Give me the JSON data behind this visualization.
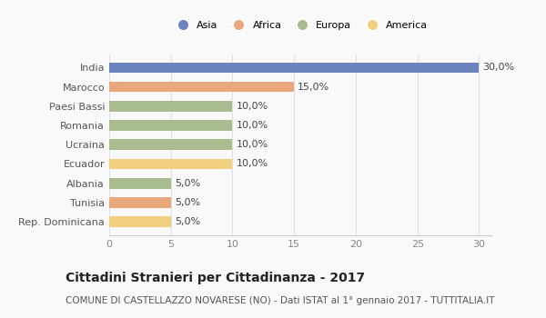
{
  "countries": [
    "India",
    "Marocco",
    "Paesi Bassi",
    "Romania",
    "Ucraina",
    "Ecuador",
    "Albania",
    "Tunisia",
    "Rep. Dominicana"
  ],
  "values": [
    30.0,
    15.0,
    10.0,
    10.0,
    10.0,
    10.0,
    5.0,
    5.0,
    5.0
  ],
  "continents": [
    "Asia",
    "Africa",
    "Europa",
    "Europa",
    "Europa",
    "America",
    "Europa",
    "Africa",
    "America"
  ],
  "colors": {
    "Asia": "#6b83bf",
    "Africa": "#e8a87c",
    "Europa": "#a8bc8f",
    "America": "#f0d080"
  },
  "legend_order": [
    "Asia",
    "Africa",
    "Europa",
    "America"
  ],
  "xlim": [
    0,
    31
  ],
  "xticks": [
    0,
    5,
    10,
    15,
    20,
    25,
    30
  ],
  "title_bold": "Cittadini Stranieri per Cittadinanza - 2017",
  "subtitle": "COMUNE DI CASTELLAZZO NOVARESE (NO) - Dati ISTAT al 1° gennaio 2017 - TUTTITALIA.IT",
  "background_color": "#f9f9f9",
  "bar_height": 0.55,
  "label_fontsize": 8,
  "ytick_fontsize": 8,
  "xtick_fontsize": 8,
  "title_fontsize": 10,
  "subtitle_fontsize": 7.5
}
